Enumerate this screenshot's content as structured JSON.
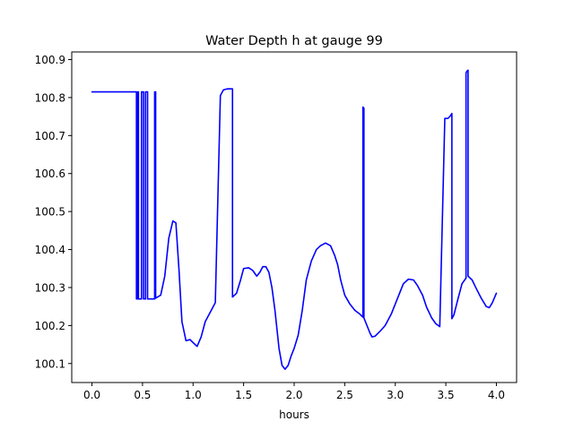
{
  "chart_data": {
    "type": "line",
    "title": "Water Depth h at gauge 99",
    "xlabel": "hours",
    "ylabel": "",
    "xlim": [
      -0.2,
      4.2
    ],
    "ylim": [
      100.05,
      100.92
    ],
    "xticks": [
      0.0,
      0.5,
      1.0,
      1.5,
      2.0,
      2.5,
      3.0,
      3.5,
      4.0
    ],
    "xtick_labels": [
      "0.0",
      "0.5",
      "1.0",
      "1.5",
      "2.0",
      "2.5",
      "3.0",
      "3.5",
      "4.0"
    ],
    "yticks": [
      100.1,
      100.2,
      100.3,
      100.4,
      100.5,
      100.6,
      100.7,
      100.8,
      100.9
    ],
    "ytick_labels": [
      "100.1",
      "100.2",
      "100.3",
      "100.4",
      "100.5",
      "100.6",
      "100.7",
      "100.8",
      "100.9"
    ],
    "grid": false,
    "line_color": "#0000ff",
    "series": [
      {
        "x": [
          0.0,
          0.2,
          0.44,
          0.44,
          0.45,
          0.45,
          0.46,
          0.46,
          0.49,
          0.49,
          0.51,
          0.51,
          0.53,
          0.53,
          0.55,
          0.55,
          0.62,
          0.62,
          0.63,
          0.63,
          0.68,
          0.72,
          0.76,
          0.8,
          0.83,
          0.86,
          0.89,
          0.93,
          0.97,
          1.0,
          1.04,
          1.08,
          1.12,
          1.17,
          1.22,
          1.27,
          1.27,
          1.3,
          1.34,
          1.39,
          1.39,
          1.43,
          1.47,
          1.5,
          1.55,
          1.59,
          1.63,
          1.66,
          1.69,
          1.72,
          1.75,
          1.78,
          1.81,
          1.85,
          1.88,
          1.91,
          1.94,
          1.97,
          2.0,
          2.04,
          2.08,
          2.12,
          2.17,
          2.22,
          2.26,
          2.31,
          2.36,
          2.4,
          2.43,
          2.46,
          2.5,
          2.55,
          2.6,
          2.65,
          2.68,
          2.68,
          2.69,
          2.69,
          2.72,
          2.75,
          2.77,
          2.8,
          2.85,
          2.9,
          2.96,
          3.02,
          3.08,
          3.13,
          3.18,
          3.22,
          3.27,
          3.31,
          3.36,
          3.4,
          3.44,
          3.49,
          3.49,
          3.52,
          3.54,
          3.56,
          3.56,
          3.58,
          3.62,
          3.66,
          3.7,
          3.7,
          3.71,
          3.72,
          3.72,
          3.76,
          3.8,
          3.85,
          3.9,
          3.93,
          3.96,
          4.0
        ],
        "y": [
          100.815,
          100.815,
          100.815,
          100.27,
          100.27,
          100.815,
          100.815,
          100.27,
          100.27,
          100.815,
          100.815,
          100.27,
          100.27,
          100.815,
          100.815,
          100.27,
          100.27,
          100.815,
          100.815,
          100.272,
          100.28,
          100.33,
          100.43,
          100.475,
          100.47,
          100.35,
          100.21,
          100.16,
          100.163,
          100.155,
          100.145,
          100.17,
          100.21,
          100.235,
          100.26,
          100.805,
          100.805,
          100.82,
          100.823,
          100.823,
          100.275,
          100.285,
          100.32,
          100.35,
          100.352,
          100.345,
          100.33,
          100.34,
          100.355,
          100.355,
          100.34,
          100.3,
          100.24,
          100.14,
          100.095,
          100.085,
          100.095,
          100.12,
          100.14,
          100.175,
          100.24,
          100.32,
          100.37,
          100.4,
          100.41,
          100.417,
          100.41,
          100.385,
          100.36,
          100.32,
          100.28,
          100.257,
          100.24,
          100.23,
          100.222,
          100.775,
          100.772,
          100.22,
          100.2,
          100.18,
          100.17,
          100.172,
          100.185,
          100.2,
          100.23,
          100.27,
          100.31,
          100.322,
          100.32,
          100.305,
          100.28,
          100.248,
          100.22,
          100.205,
          100.197,
          100.745,
          100.745,
          100.745,
          100.75,
          100.758,
          100.218,
          100.228,
          100.27,
          100.31,
          100.325,
          100.865,
          100.87,
          100.872,
          100.33,
          100.32,
          100.298,
          100.272,
          100.25,
          100.247,
          100.26,
          100.285
        ]
      }
    ]
  }
}
